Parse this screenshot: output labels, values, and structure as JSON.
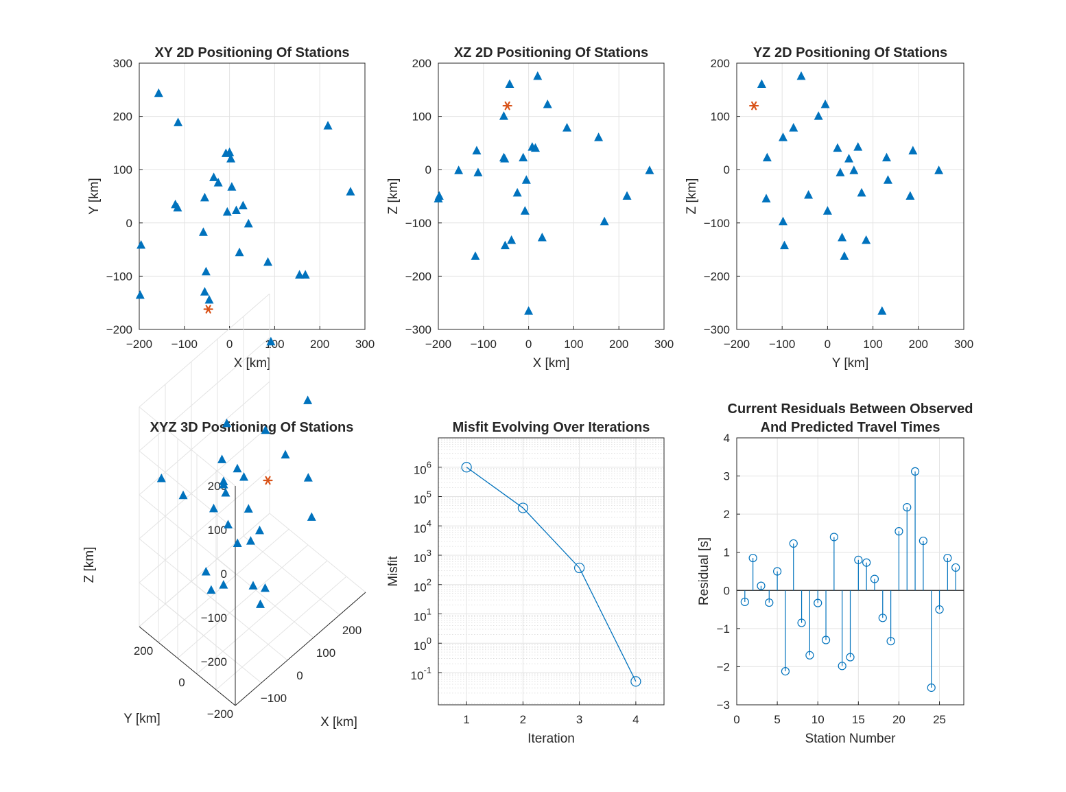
{
  "colors": {
    "station": "#0072BD",
    "source": "#D95319",
    "line": "#0072BD",
    "grid": "#e3e3e3",
    "axis": "#262626"
  },
  "chart_data": [
    {
      "id": "xy",
      "type": "scatter",
      "title": "XY 2D Positioning Of Stations",
      "xlabel": "X [km]",
      "ylabel": "Y [km]",
      "xlim": [
        -200,
        300
      ],
      "ylim": [
        -200,
        300
      ],
      "xticks": [
        -200,
        -100,
        0,
        100,
        200,
        300
      ],
      "yticks": [
        -200,
        -100,
        0,
        100,
        200,
        300
      ],
      "grid": true,
      "series": [
        {
          "marker": "triangle",
          "color": "#0072BD",
          "x": [
            -157,
            -114,
            -120,
            -115,
            -196,
            -198,
            -8,
            0,
            3,
            -35,
            -25,
            -55,
            5,
            30,
            -58,
            -5,
            15,
            42,
            -52,
            22,
            85,
            155,
            168,
            218,
            268,
            -55,
            -45
          ],
          "y": [
            243,
            188,
            34,
            28,
            -42,
            -136,
            130,
            132,
            120,
            85,
            75,
            47,
            67,
            32,
            -18,
            20,
            23,
            -2,
            -92,
            -56,
            -74,
            -98,
            -98,
            182,
            58,
            -130,
            -145
          ]
        },
        {
          "marker": "asterisk",
          "color": "#D95319",
          "x": [
            -47
          ],
          "y": [
            -162
          ]
        }
      ]
    },
    {
      "id": "xz",
      "type": "scatter",
      "title": "XZ 2D Positioning Of Stations",
      "xlabel": "X [km]",
      "ylabel": "Z [km]",
      "xlim": [
        -200,
        300
      ],
      "ylim": [
        -300,
        200
      ],
      "xticks": [
        -200,
        -100,
        0,
        100,
        200,
        300
      ],
      "yticks": [
        -300,
        -200,
        -100,
        0,
        100,
        200
      ],
      "grid": true,
      "series": [
        {
          "marker": "triangle",
          "color": "#0072BD",
          "x": [
            -42,
            20,
            42,
            -55,
            85,
            155,
            -115,
            -155,
            -112,
            -55,
            -53,
            -12,
            8,
            15,
            -198,
            -200,
            -5,
            -25,
            218,
            268,
            -8,
            168,
            30,
            -38,
            -52,
            -118,
            0
          ],
          "y": [
            160,
            175,
            122,
            100,
            78,
            60,
            35,
            -2,
            -6,
            22,
            20,
            22,
            42,
            40,
            -50,
            -55,
            -20,
            -44,
            -50,
            -2,
            -78,
            -98,
            -128,
            -133,
            -143,
            -163,
            -266
          ]
        },
        {
          "marker": "asterisk",
          "color": "#D95319",
          "x": [
            -47
          ],
          "y": [
            120
          ]
        }
      ]
    },
    {
      "id": "yz",
      "type": "scatter",
      "title": "YZ 2D Positioning Of Stations",
      "xlabel": "Y [km]",
      "ylabel": "Z [km]",
      "xlim": [
        -200,
        300
      ],
      "ylim": [
        -300,
        200
      ],
      "xticks": [
        -200,
        -100,
        0,
        100,
        200,
        300
      ],
      "yticks": [
        -300,
        -200,
        -100,
        0,
        100,
        200
      ],
      "grid": true,
      "series": [
        {
          "marker": "triangle",
          "color": "#0072BD",
          "x": [
            -145,
            -58,
            -5,
            -20,
            -75,
            -98,
            -133,
            -135,
            22,
            28,
            47,
            58,
            67,
            130,
            133,
            188,
            245,
            -42,
            0,
            75,
            182,
            -98,
            -95,
            32,
            37,
            85,
            120
          ],
          "y": [
            160,
            175,
            122,
            100,
            78,
            60,
            22,
            -55,
            40,
            -6,
            20,
            -2,
            42,
            22,
            -20,
            35,
            -2,
            -48,
            -78,
            -44,
            -50,
            -98,
            -143,
            -128,
            -163,
            -133,
            -266
          ]
        },
        {
          "marker": "asterisk",
          "color": "#D95319",
          "x": [
            -162
          ],
          "y": [
            120
          ]
        }
      ]
    },
    {
      "id": "xyz",
      "type": "scatter",
      "title": "XYZ 3D Positioning Of Stations",
      "xlabel": "X [km]",
      "ylabel": "Y [km]",
      "zlabel": "Z [km]",
      "xticks": [
        -100,
        0,
        100,
        200
      ],
      "yticks": [
        -200,
        0,
        200
      ],
      "zticks": [
        -200,
        -100,
        0,
        100,
        200
      ],
      "xlim": [
        -200,
        300
      ],
      "ylim": [
        -200,
        300
      ],
      "zlim": [
        -300,
        200
      ],
      "grid": true,
      "series": [
        {
          "marker": "triangle",
          "color": "#0072BD",
          "x": [
            -157,
            -114,
            -120,
            -115,
            -196,
            -198,
            -8,
            0,
            3,
            -35,
            -25,
            -55,
            5,
            30,
            -58,
            -5,
            15,
            42,
            -52,
            22,
            85,
            155,
            168,
            218,
            268,
            -55,
            -45
          ],
          "y": [
            243,
            188,
            34,
            28,
            -42,
            -136,
            130,
            132,
            120,
            85,
            75,
            47,
            67,
            32,
            -18,
            20,
            23,
            -2,
            -92,
            -56,
            -74,
            -98,
            -98,
            182,
            58,
            -130,
            -145
          ],
          "z": [
            35,
            -6,
            -163,
            22,
            -55,
            -50,
            42,
            -20,
            122,
            22,
            -78,
            20,
            -133,
            -128,
            100,
            40,
            -44,
            -266,
            -143,
            160,
            78,
            -2,
            -98,
            175,
            60,
            -2,
            -133
          ]
        },
        {
          "marker": "asterisk",
          "color": "#D95319",
          "x": [
            -47
          ],
          "y": [
            -162
          ],
          "z": [
            120
          ]
        }
      ]
    },
    {
      "id": "misfit",
      "type": "line",
      "title": "Misfit Evolving Over Iterations",
      "xlabel": "Iteration",
      "ylabel": "Misfit",
      "xlim": [
        0.5,
        4.5
      ],
      "ylim_log10": [
        -2.1,
        7.0
      ],
      "xticks": [
        1,
        2,
        3,
        4
      ],
      "yscale": "log",
      "ytick_exponents": [
        "-1",
        "0",
        "1",
        "2",
        "3",
        "4",
        "5",
        "6"
      ],
      "grid": true,
      "series": [
        {
          "marker": "circle",
          "color": "#0072BD",
          "x": [
            1,
            2,
            3,
            4
          ],
          "y": [
            1000000,
            41000,
            370,
            0.05
          ]
        }
      ]
    },
    {
      "id": "residuals",
      "type": "stem",
      "title": [
        "Current Residuals Between Observed",
        "And Predicted Travel Times"
      ],
      "xlabel": "Station Number",
      "ylabel": "Residual [s]",
      "xlim": [
        0,
        28
      ],
      "ylim": [
        -3,
        4
      ],
      "xticks": [
        0,
        5,
        10,
        15,
        20,
        25
      ],
      "yticks": [
        -3,
        -2,
        -1,
        0,
        1,
        2,
        3,
        4
      ],
      "grid": true,
      "series": [
        {
          "marker": "circle",
          "color": "#0072BD",
          "x": [
            1,
            2,
            3,
            4,
            5,
            6,
            7,
            8,
            9,
            10,
            11,
            12,
            13,
            14,
            15,
            16,
            17,
            18,
            19,
            20,
            21,
            22,
            23,
            24,
            25,
            26,
            27
          ],
          "y": [
            -0.3,
            0.85,
            0.12,
            -0.32,
            0.5,
            -2.12,
            1.23,
            -0.85,
            -1.7,
            -0.33,
            -1.3,
            1.4,
            -1.98,
            -1.75,
            0.8,
            0.73,
            0.3,
            -0.72,
            -1.33,
            1.55,
            2.18,
            3.12,
            1.3,
            -2.55,
            -0.5,
            0.85,
            0.6
          ]
        }
      ]
    }
  ]
}
